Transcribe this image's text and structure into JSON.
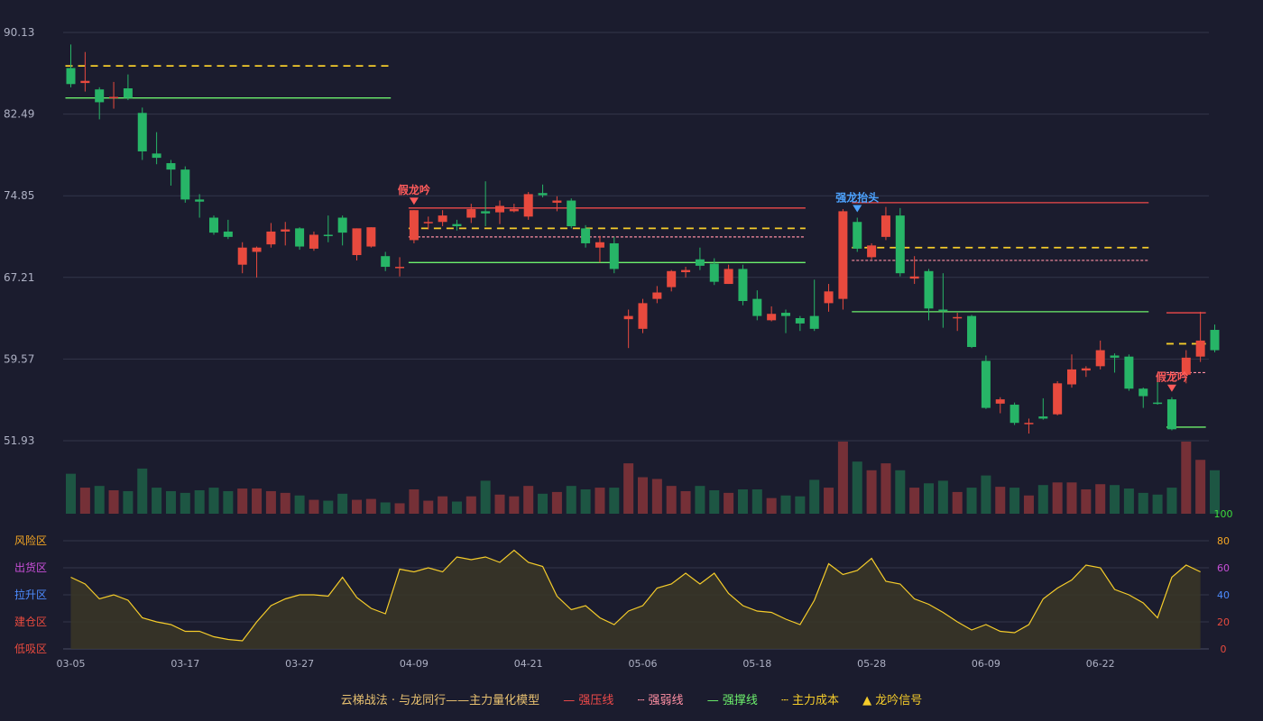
{
  "chart_data": {
    "type": "candlestick",
    "price_axis": {
      "ticks": [
        90.13,
        82.49,
        74.85,
        67.21,
        59.57,
        51.93
      ],
      "range": [
        51.93,
        90.13
      ]
    },
    "x_tick_labels": [
      {
        "i": 0,
        "label": "03-05"
      },
      {
        "i": 8,
        "label": "03-17"
      },
      {
        "i": 16,
        "label": "03-27"
      },
      {
        "i": 24,
        "label": "04-09"
      },
      {
        "i": 32,
        "label": "04-21"
      },
      {
        "i": 40,
        "label": "05-06"
      },
      {
        "i": 48,
        "label": "05-18"
      },
      {
        "i": 56,
        "label": "05-28"
      },
      {
        "i": 64,
        "label": "06-09"
      },
      {
        "i": 72,
        "label": "06-22"
      }
    ],
    "candles": [
      [
        86.8,
        85.3,
        89.0,
        85.0,
        46
      ],
      [
        85.4,
        85.6,
        88.3,
        84.6,
        30
      ],
      [
        84.8,
        83.6,
        85.0,
        82.0,
        32
      ],
      [
        84.0,
        84.1,
        85.5,
        83.0,
        27
      ],
      [
        84.9,
        84.0,
        86.2,
        83.8,
        26
      ],
      [
        82.6,
        79.0,
        83.1,
        78.2,
        52
      ],
      [
        78.8,
        78.4,
        80.8,
        77.8,
        30
      ],
      [
        77.9,
        77.3,
        78.2,
        75.8,
        26
      ],
      [
        77.3,
        74.5,
        77.6,
        74.2,
        24
      ],
      [
        74.5,
        74.3,
        75.0,
        72.8,
        27
      ],
      [
        72.8,
        71.4,
        73.0,
        71.2,
        30
      ],
      [
        71.5,
        71.0,
        72.6,
        70.8,
        26
      ],
      [
        68.4,
        70.0,
        70.5,
        67.6,
        29
      ],
      [
        69.6,
        70.0,
        70.1,
        67.2,
        29
      ],
      [
        70.3,
        71.5,
        72.3,
        70.0,
        26
      ],
      [
        71.5,
        71.7,
        72.4,
        70.2,
        24
      ],
      [
        71.8,
        70.1,
        71.9,
        69.8,
        21
      ],
      [
        69.9,
        71.2,
        71.5,
        69.7,
        16
      ],
      [
        71.2,
        71.1,
        73.0,
        70.5,
        15
      ],
      [
        72.8,
        71.4,
        73.0,
        70.2,
        23
      ],
      [
        69.3,
        71.8,
        71.8,
        68.8,
        16
      ],
      [
        70.1,
        71.9,
        71.9,
        70.0,
        17
      ],
      [
        69.2,
        68.2,
        69.6,
        67.8,
        13
      ],
      [
        68.1,
        68.2,
        69.1,
        67.3,
        12
      ],
      [
        70.7,
        73.5,
        73.5,
        70.4,
        28
      ],
      [
        72.3,
        72.4,
        72.9,
        71.7,
        15
      ],
      [
        72.4,
        73.0,
        73.5,
        72.0,
        20
      ],
      [
        72.2,
        72.0,
        72.6,
        71.6,
        14
      ],
      [
        72.8,
        73.6,
        74.1,
        72.3,
        20
      ],
      [
        73.4,
        73.2,
        76.2,
        72.0,
        38
      ],
      [
        73.3,
        73.9,
        74.4,
        72.2,
        22
      ],
      [
        73.4,
        73.6,
        74.1,
        73.3,
        20
      ],
      [
        72.9,
        75.0,
        75.2,
        72.6,
        32
      ],
      [
        75.1,
        74.9,
        75.9,
        74.7,
        23
      ],
      [
        74.2,
        74.4,
        74.8,
        73.4,
        25
      ],
      [
        74.4,
        72.0,
        74.6,
        71.8,
        32
      ],
      [
        71.8,
        70.4,
        72.1,
        70.0,
        28
      ],
      [
        70.0,
        70.5,
        71.1,
        68.6,
        30
      ],
      [
        70.4,
        68.0,
        71.0,
        67.6,
        30
      ],
      [
        63.3,
        63.6,
        64.2,
        60.6,
        58
      ],
      [
        62.4,
        64.8,
        65.2,
        62.0,
        42
      ],
      [
        65.2,
        65.8,
        66.4,
        64.8,
        40
      ],
      [
        66.3,
        67.8,
        67.9,
        65.9,
        32
      ],
      [
        67.7,
        67.9,
        68.2,
        67.2,
        26
      ],
      [
        68.9,
        68.3,
        70.0,
        67.9,
        32
      ],
      [
        68.5,
        66.8,
        69.0,
        66.5,
        27
      ],
      [
        66.6,
        68.0,
        68.4,
        66.6,
        24
      ],
      [
        68.0,
        65.0,
        68.4,
        64.6,
        28
      ],
      [
        65.2,
        63.6,
        66.0,
        63.2,
        28
      ],
      [
        63.2,
        63.8,
        64.5,
        63.1,
        18
      ],
      [
        63.9,
        63.6,
        64.2,
        62.0,
        21
      ],
      [
        63.4,
        62.9,
        63.6,
        62.2,
        20
      ],
      [
        63.6,
        62.4,
        67.0,
        62.2,
        39
      ],
      [
        64.8,
        65.9,
        66.6,
        64.0,
        30
      ],
      [
        65.2,
        73.4,
        73.6,
        64.2,
        83
      ],
      [
        72.4,
        69.9,
        72.8,
        69.6,
        60
      ],
      [
        69.1,
        70.2,
        70.4,
        68.9,
        50
      ],
      [
        71.0,
        73.0,
        73.8,
        70.7,
        58
      ],
      [
        73.0,
        67.6,
        73.7,
        67.3,
        50
      ],
      [
        67.1,
        67.3,
        69.2,
        66.6,
        30
      ],
      [
        67.8,
        64.3,
        68.0,
        63.2,
        35
      ],
      [
        64.2,
        64.1,
        67.6,
        62.5,
        38
      ],
      [
        63.4,
        63.5,
        63.9,
        62.2,
        25
      ],
      [
        63.6,
        60.7,
        63.7,
        60.6,
        30
      ],
      [
        59.4,
        55.0,
        59.9,
        54.9,
        44
      ],
      [
        55.4,
        55.8,
        56.0,
        54.5,
        31
      ],
      [
        55.3,
        53.6,
        55.5,
        53.4,
        30
      ],
      [
        53.6,
        53.6,
        54.0,
        52.6,
        21
      ],
      [
        54.2,
        54.0,
        55.9,
        53.9,
        33
      ],
      [
        54.4,
        57.3,
        57.5,
        54.3,
        36
      ],
      [
        57.2,
        58.6,
        60.0,
        56.9,
        36
      ],
      [
        58.5,
        58.7,
        58.9,
        57.9,
        28
      ],
      [
        58.9,
        60.4,
        61.3,
        58.6,
        34
      ],
      [
        59.9,
        59.7,
        60.1,
        58.3,
        33
      ],
      [
        59.8,
        56.8,
        60.0,
        56.6,
        29
      ],
      [
        56.8,
        56.1,
        56.9,
        55.0,
        24
      ],
      [
        55.5,
        55.4,
        58.1,
        55.3,
        22
      ],
      [
        55.8,
        53.0,
        56.0,
        52.9,
        30
      ],
      [
        58.1,
        59.7,
        60.4,
        57.3,
        83
      ],
      [
        59.8,
        61.3,
        64.0,
        59.3,
        62
      ],
      [
        62.3,
        60.4,
        62.8,
        60.2,
        50
      ]
    ],
    "indicator": {
      "name": "云梯战法 · 与龙同行——主力量化模型",
      "axis_ticks": [
        0,
        20,
        40,
        60,
        80,
        100
      ],
      "zones": [
        "风险区",
        "出货区",
        "拉升区",
        "建仓区",
        "低吸区"
      ],
      "values": [
        53,
        48,
        37,
        40,
        36,
        23,
        20,
        18,
        13,
        13,
        9,
        7,
        6,
        20,
        32,
        37,
        40,
        40,
        39,
        53,
        38,
        30,
        26,
        59,
        57,
        60,
        57,
        68,
        66,
        68,
        64,
        73,
        64,
        61,
        39,
        29,
        32,
        23,
        18,
        28,
        32,
        45,
        48,
        56,
        48,
        56,
        41,
        32,
        28,
        27,
        22,
        18,
        36,
        63,
        55,
        58,
        67,
        50,
        48,
        37,
        33,
        27,
        20,
        14,
        18,
        13,
        12,
        18,
        37,
        45,
        51,
        62,
        60,
        44,
        40,
        34,
        23,
        53,
        62,
        57
      ]
    },
    "annotations": {
      "signals": [
        {
          "i": 24,
          "label": "假龙吟",
          "type": "fake"
        },
        {
          "i": 55,
          "label": "强龙抬头",
          "type": "strong"
        },
        {
          "i": 77,
          "label": "假龙吟",
          "type": "fake"
        }
      ],
      "zones": [
        {
          "start": 0,
          "end": 22,
          "cost": 87.0,
          "support": 84.0
        },
        {
          "start": 24,
          "end": 51,
          "pressure": 73.7,
          "weak": 71.0,
          "cost": 71.8,
          "support": 68.6
        },
        {
          "start": 55,
          "end": 75,
          "pressure": 74.2,
          "weak": 68.8,
          "cost": 70.0,
          "support": 64.0
        },
        {
          "start": 77,
          "end": 79,
          "pressure": 63.9,
          "weak": 58.3,
          "cost": 61.0,
          "support": 53.2
        }
      ]
    },
    "legend": [
      {
        "key": "title",
        "label": "云梯战法 · 与龙同行——主力量化模型"
      },
      {
        "key": "pressure",
        "label": "强压线"
      },
      {
        "key": "weak",
        "label": "强弱线"
      },
      {
        "key": "support",
        "label": "强撑线"
      },
      {
        "key": "cost",
        "label": "主力成本"
      },
      {
        "key": "signal",
        "label": "龙吟信号"
      }
    ],
    "grid": true
  },
  "legend": {
    "title": "云梯战法 · 与龙同行——主力量化模型",
    "pressure": "强压线",
    "weak": "强弱线",
    "support": "强撑线",
    "cost": "主力成本",
    "signal": "龙吟信号"
  },
  "colors": {
    "background": "#1b1c2e",
    "up": "#e84a3e",
    "down": "#27b567",
    "pressure": "#ef4a4a",
    "weak": "#ff8fa3",
    "support": "#6cf06c",
    "cost": "#f5cc2a",
    "strong_signal": "#4da3ff",
    "fake_signal": "#ff5b5b",
    "indicator_line": "#f5cc2a",
    "grid": "#33364a"
  }
}
